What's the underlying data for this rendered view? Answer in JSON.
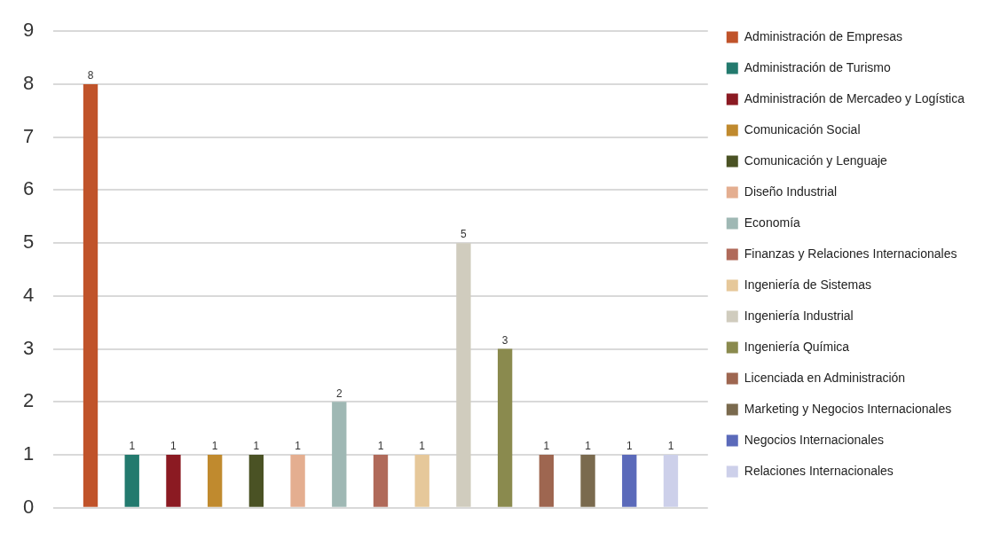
{
  "chart_data": {
    "type": "bar",
    "categories": [
      null
    ],
    "ylim": [
      0,
      9
    ],
    "yticks": [
      0,
      1,
      2,
      3,
      4,
      5,
      6,
      7,
      8,
      9
    ],
    "grid": "y",
    "legend": "right",
    "data_labels": true,
    "series": [
      {
        "name": "Administración de Empresas",
        "color": "#c0532a",
        "values": [
          8
        ]
      },
      {
        "name": "Administración de Turismo",
        "color": "#237a6e",
        "values": [
          1
        ]
      },
      {
        "name": "Administración de Mercadeo y Logística",
        "color": "#8b1a22",
        "values": [
          1
        ]
      },
      {
        "name": "Comunicación Social",
        "color": "#c08a2e",
        "values": [
          1
        ]
      },
      {
        "name": "Comunicación y Lenguaje",
        "color": "#4a5224",
        "values": [
          1
        ]
      },
      {
        "name": "Diseño Industrial",
        "color": "#e4ae90",
        "values": [
          1
        ]
      },
      {
        "name": "Economía",
        "color": "#9fb8b4",
        "values": [
          2
        ]
      },
      {
        "name": "Finanzas y Relaciones Internacionales",
        "color": "#b06a5a",
        "values": [
          1
        ]
      },
      {
        "name": "Ingeniería de Sistemas",
        "color": "#e6c89a",
        "values": [
          1
        ]
      },
      {
        "name": "Ingeniería Industrial",
        "color": "#d0ccbe",
        "values": [
          5
        ]
      },
      {
        "name": "Ingeniería Química",
        "color": "#8a8a4e",
        "values": [
          3
        ]
      },
      {
        "name": "Licenciada en Administración",
        "color": "#9e6650",
        "values": [
          1
        ]
      },
      {
        "name": "Marketing y Negocios Internacionales",
        "color": "#7a6a4e",
        "values": [
          1
        ]
      },
      {
        "name": "Negocios Internacionales",
        "color": "#5b6aba",
        "values": [
          1
        ]
      },
      {
        "name": "Relaciones Internacionales",
        "color": "#cdd0ea",
        "values": [
          1
        ]
      }
    ]
  }
}
